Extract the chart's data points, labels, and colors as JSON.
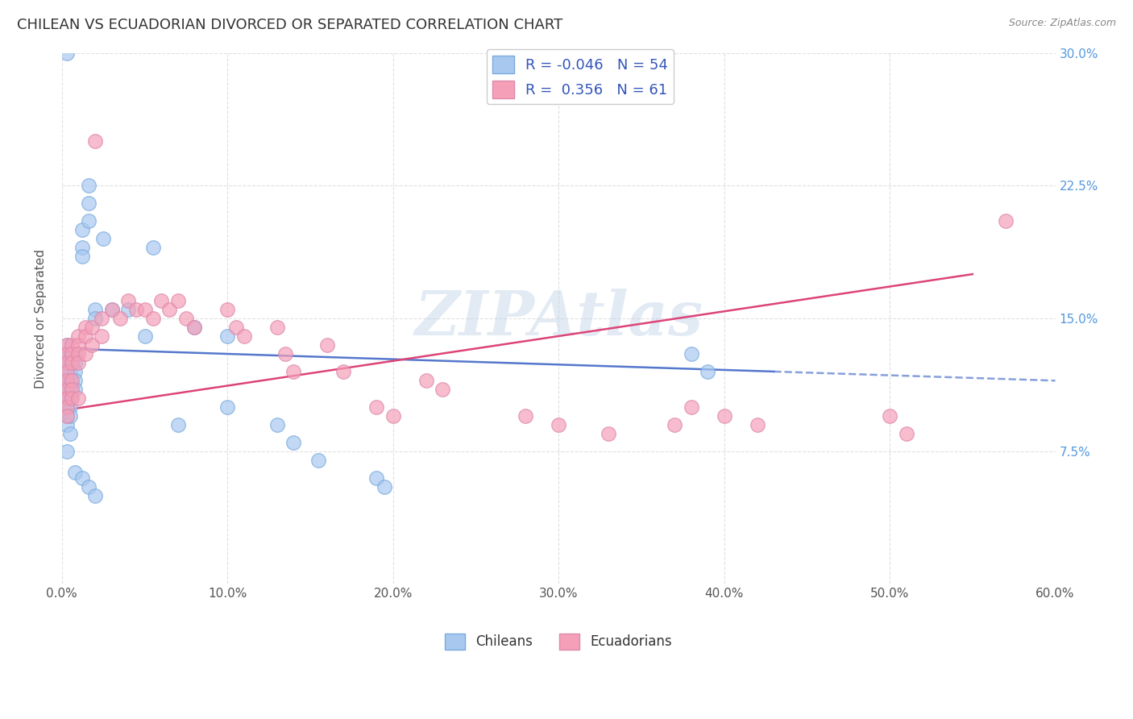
{
  "title": "CHILEAN VS ECUADORIAN DIVORCED OR SEPARATED CORRELATION CHART",
  "source": "Source: ZipAtlas.com",
  "ylabel": "Divorced or Separated",
  "xlim": [
    0.0,
    0.6
  ],
  "ylim": [
    0.0,
    0.3
  ],
  "xtick_vals": [
    0.0,
    0.1,
    0.2,
    0.3,
    0.4,
    0.5,
    0.6
  ],
  "xticklabels": [
    "0.0%",
    "10.0%",
    "20.0%",
    "30.0%",
    "40.0%",
    "50.0%",
    "60.0%"
  ],
  "ytick_vals": [
    0.0,
    0.075,
    0.15,
    0.225,
    0.3
  ],
  "yticklabels_right": [
    "7.5%",
    "15.0%",
    "22.5%",
    "30.0%"
  ],
  "ytick_right_vals": [
    0.075,
    0.15,
    0.225,
    0.3
  ],
  "watermark": "ZIPAtlas",
  "legend_R_chilean": "-0.046",
  "legend_N_chilean": "54",
  "legend_R_ecuadorian": "0.356",
  "legend_N_ecuadorian": "61",
  "chilean_color": "#a8c8f0",
  "ecuadorian_color": "#f5a0b8",
  "chilean_line_color": "#5577cc",
  "ecuadorian_line_color": "#dd4477",
  "background_color": "#ffffff",
  "grid_color": "#cccccc",
  "chi_line_y0": 0.133,
  "chi_line_y1": 0.12,
  "chi_line_x_solid_end": 0.43,
  "ecu_line_y0": 0.098,
  "ecu_line_y1": 0.175,
  "ecu_line_x_end": 0.55,
  "chilean_x": [
    0.003,
    0.003,
    0.003,
    0.003,
    0.003,
    0.003,
    0.003,
    0.003,
    0.003,
    0.003,
    0.005,
    0.005,
    0.005,
    0.005,
    0.005,
    0.005,
    0.005,
    0.005,
    0.008,
    0.008,
    0.008,
    0.008,
    0.008,
    0.012,
    0.012,
    0.012,
    0.016,
    0.016,
    0.016,
    0.02,
    0.02,
    0.025,
    0.03,
    0.04,
    0.05,
    0.055,
    0.07,
    0.08,
    0.1,
    0.1,
    0.13,
    0.14,
    0.155,
    0.19,
    0.195,
    0.38,
    0.39,
    0.003,
    0.003,
    0.005,
    0.008,
    0.012,
    0.016,
    0.02
  ],
  "chilean_y": [
    0.135,
    0.13,
    0.125,
    0.12,
    0.115,
    0.11,
    0.105,
    0.1,
    0.095,
    0.09,
    0.13,
    0.125,
    0.12,
    0.115,
    0.11,
    0.105,
    0.1,
    0.095,
    0.13,
    0.125,
    0.12,
    0.115,
    0.11,
    0.2,
    0.19,
    0.185,
    0.225,
    0.215,
    0.205,
    0.155,
    0.15,
    0.195,
    0.155,
    0.155,
    0.14,
    0.19,
    0.09,
    0.145,
    0.14,
    0.1,
    0.09,
    0.08,
    0.07,
    0.06,
    0.055,
    0.13,
    0.12,
    0.3,
    0.075,
    0.085,
    0.063,
    0.06,
    0.055,
    0.05
  ],
  "ecuadorian_x": [
    0.003,
    0.003,
    0.003,
    0.003,
    0.003,
    0.003,
    0.003,
    0.003,
    0.006,
    0.006,
    0.006,
    0.006,
    0.006,
    0.006,
    0.01,
    0.01,
    0.01,
    0.01,
    0.014,
    0.014,
    0.014,
    0.018,
    0.018,
    0.024,
    0.024,
    0.03,
    0.035,
    0.04,
    0.045,
    0.05,
    0.055,
    0.06,
    0.065,
    0.07,
    0.075,
    0.08,
    0.1,
    0.105,
    0.11,
    0.13,
    0.135,
    0.14,
    0.16,
    0.17,
    0.19,
    0.2,
    0.22,
    0.23,
    0.28,
    0.3,
    0.33,
    0.37,
    0.38,
    0.4,
    0.42,
    0.5,
    0.51,
    0.57,
    0.003,
    0.01,
    0.02
  ],
  "ecuadorian_y": [
    0.135,
    0.13,
    0.125,
    0.12,
    0.115,
    0.11,
    0.105,
    0.1,
    0.135,
    0.13,
    0.125,
    0.115,
    0.11,
    0.105,
    0.14,
    0.135,
    0.13,
    0.125,
    0.145,
    0.14,
    0.13,
    0.145,
    0.135,
    0.15,
    0.14,
    0.155,
    0.15,
    0.16,
    0.155,
    0.155,
    0.15,
    0.16,
    0.155,
    0.16,
    0.15,
    0.145,
    0.155,
    0.145,
    0.14,
    0.145,
    0.13,
    0.12,
    0.135,
    0.12,
    0.1,
    0.095,
    0.115,
    0.11,
    0.095,
    0.09,
    0.085,
    0.09,
    0.1,
    0.095,
    0.09,
    0.095,
    0.085,
    0.205,
    0.095,
    0.105,
    0.25
  ]
}
